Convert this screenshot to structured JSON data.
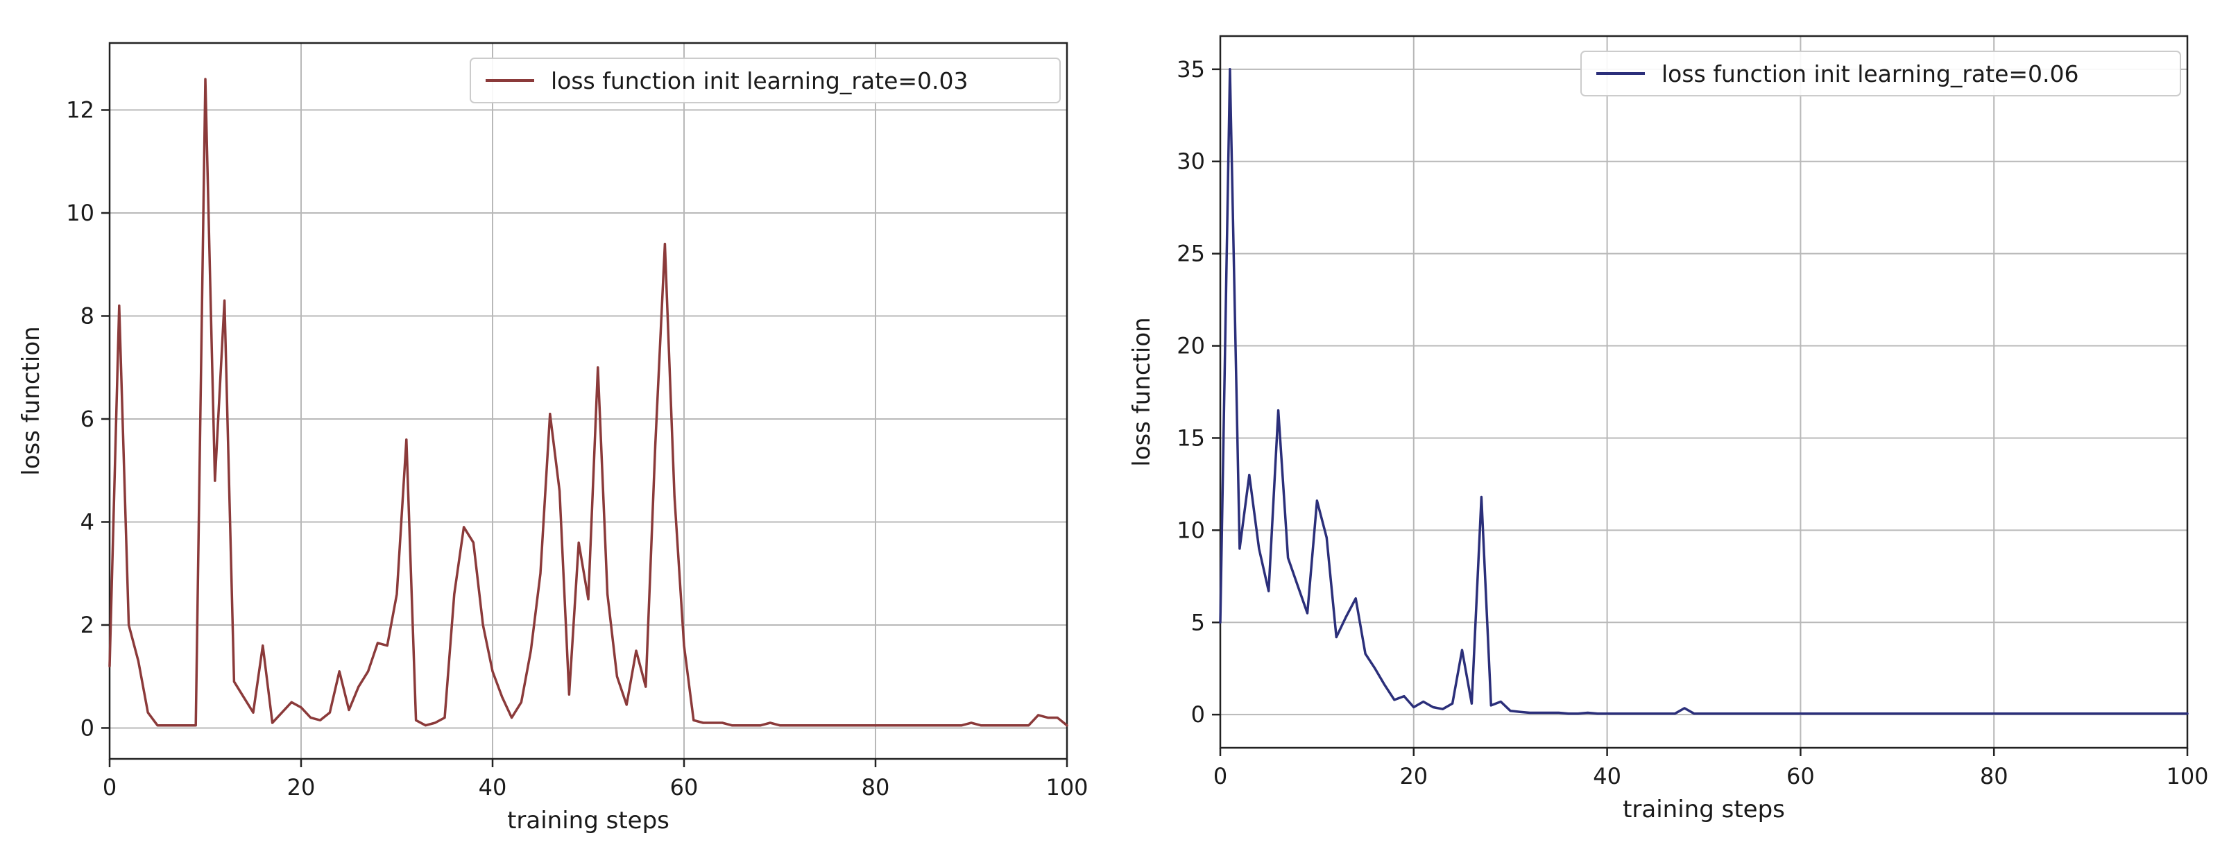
{
  "chart_data": [
    {
      "type": "line",
      "xlabel": "training steps",
      "ylabel": "loss function",
      "xlim": [
        0,
        100
      ],
      "ylim": [
        -0.6,
        13.3
      ],
      "xticks": [
        0,
        20,
        40,
        60,
        80,
        100
      ],
      "yticks": [
        0,
        2,
        4,
        6,
        8,
        10,
        12
      ],
      "grid": true,
      "legend_position": "top-right",
      "series": [
        {
          "name": "loss function init learning_rate=0.03",
          "color": "#8b3a3a",
          "x": [
            0,
            1,
            2,
            3,
            4,
            5,
            6,
            7,
            8,
            9,
            10,
            11,
            12,
            13,
            14,
            15,
            16,
            17,
            18,
            19,
            20,
            21,
            22,
            23,
            24,
            25,
            26,
            27,
            28,
            29,
            30,
            31,
            32,
            33,
            34,
            35,
            36,
            37,
            38,
            39,
            40,
            41,
            42,
            43,
            44,
            45,
            46,
            47,
            48,
            49,
            50,
            51,
            52,
            53,
            54,
            55,
            56,
            57,
            58,
            59,
            60,
            61,
            62,
            63,
            64,
            65,
            66,
            67,
            68,
            69,
            70,
            71,
            72,
            73,
            74,
            75,
            76,
            77,
            78,
            79,
            80,
            81,
            82,
            83,
            84,
            85,
            86,
            87,
            88,
            89,
            90,
            91,
            92,
            93,
            94,
            95,
            96,
            97,
            98,
            99,
            100
          ],
          "y": [
            1.2,
            8.2,
            2.0,
            1.3,
            0.3,
            0.05,
            0.05,
            0.05,
            0.05,
            0.05,
            12.6,
            4.8,
            8.3,
            0.9,
            0.6,
            0.3,
            1.6,
            0.1,
            0.3,
            0.5,
            0.4,
            0.2,
            0.15,
            0.3,
            1.1,
            0.35,
            0.8,
            1.1,
            1.65,
            1.6,
            2.6,
            5.6,
            0.15,
            0.05,
            0.1,
            0.2,
            2.6,
            3.9,
            3.6,
            2.0,
            1.1,
            0.6,
            0.2,
            0.5,
            1.5,
            3.0,
            6.1,
            4.6,
            0.65,
            3.6,
            2.5,
            7.0,
            2.6,
            1.0,
            0.45,
            1.5,
            0.8,
            5.5,
            9.4,
            4.5,
            1.6,
            0.15,
            0.1,
            0.1,
            0.1,
            0.05,
            0.05,
            0.05,
            0.05,
            0.1,
            0.05,
            0.05,
            0.05,
            0.05,
            0.05,
            0.05,
            0.05,
            0.05,
            0.05,
            0.05,
            0.05,
            0.05,
            0.05,
            0.05,
            0.05,
            0.05,
            0.05,
            0.05,
            0.05,
            0.05,
            0.1,
            0.05,
            0.05,
            0.05,
            0.05,
            0.05,
            0.05,
            0.25,
            0.2,
            0.2,
            0.05
          ]
        }
      ]
    },
    {
      "type": "line",
      "xlabel": "training steps",
      "ylabel": "loss function",
      "xlim": [
        0,
        100
      ],
      "ylim": [
        -1.8,
        36.8
      ],
      "xticks": [
        0,
        20,
        40,
        60,
        80,
        100
      ],
      "yticks": [
        0,
        5,
        10,
        15,
        20,
        25,
        30,
        35
      ],
      "grid": true,
      "legend_position": "top-right",
      "series": [
        {
          "name": "loss function init learning_rate=0.06",
          "color": "#2b2f7a",
          "x": [
            0,
            1,
            2,
            3,
            4,
            5,
            6,
            7,
            8,
            9,
            10,
            11,
            12,
            13,
            14,
            15,
            16,
            17,
            18,
            19,
            20,
            21,
            22,
            23,
            24,
            25,
            26,
            27,
            28,
            29,
            30,
            31,
            32,
            33,
            34,
            35,
            36,
            37,
            38,
            39,
            40,
            41,
            42,
            43,
            44,
            45,
            46,
            47,
            48,
            49,
            50,
            55,
            60,
            65,
            70,
            75,
            80,
            85,
            90,
            95,
            100
          ],
          "y": [
            5.0,
            35.0,
            9.0,
            13.0,
            9.0,
            6.7,
            16.5,
            8.5,
            7.0,
            5.5,
            11.6,
            9.6,
            4.2,
            5.3,
            6.3,
            3.3,
            2.5,
            1.6,
            0.8,
            1.0,
            0.4,
            0.7,
            0.4,
            0.3,
            0.6,
            3.5,
            0.6,
            11.8,
            0.5,
            0.7,
            0.2,
            0.15,
            0.1,
            0.1,
            0.1,
            0.1,
            0.05,
            0.05,
            0.1,
            0.05,
            0.05,
            0.05,
            0.05,
            0.05,
            0.05,
            0.05,
            0.05,
            0.05,
            0.35,
            0.05,
            0.05,
            0.05,
            0.05,
            0.05,
            0.05,
            0.05,
            0.05,
            0.05,
            0.05,
            0.05,
            0.05
          ]
        }
      ]
    }
  ]
}
